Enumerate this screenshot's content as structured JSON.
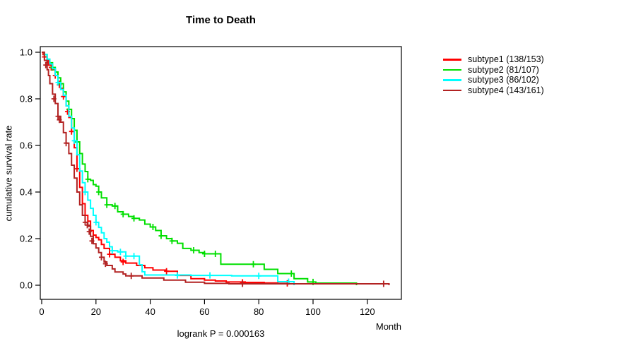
{
  "figure": {
    "title": "Time to Death",
    "x_axis_label": "Month",
    "y_axis_label": "cumulative survival rate",
    "annotation": "logrank P = 0.000163"
  },
  "chart_data": {
    "type": "line",
    "line_style": "kaplan-meier-step",
    "title": "Time to Death",
    "xlabel": "Month",
    "ylabel": "cumulative survival rate",
    "xlim": [
      0,
      134
    ],
    "ylim": [
      0,
      1.0
    ],
    "x_ticks": [
      0,
      20,
      40,
      60,
      80,
      100,
      120
    ],
    "y_tick_labels": [
      "0.0",
      "0.2",
      "0.4",
      "0.6",
      "0.8",
      "1.0"
    ],
    "grid": false,
    "legend_position": "right-outside",
    "annotation": "logrank P = 0.000163",
    "series": [
      {
        "name": "subtype1",
        "label": "subtype1 (138/153)",
        "events": "138/153",
        "color": "#FF0000",
        "points": [
          [
            0,
            1.0
          ],
          [
            0.5,
            0.99
          ],
          [
            1,
            0.98
          ],
          [
            2,
            0.96
          ],
          [
            3,
            0.945
          ],
          [
            4,
            0.925
          ],
          [
            5,
            0.9
          ],
          [
            6,
            0.875
          ],
          [
            7,
            0.845
          ],
          [
            8,
            0.81
          ],
          [
            9,
            0.77
          ],
          [
            10,
            0.72
          ],
          [
            11,
            0.66
          ],
          [
            12,
            0.59
          ],
          [
            13,
            0.5
          ],
          [
            14,
            0.42
          ],
          [
            15,
            0.35
          ],
          [
            16,
            0.3
          ],
          [
            17,
            0.275
          ],
          [
            18,
            0.235
          ],
          [
            19,
            0.215
          ],
          [
            20,
            0.205
          ],
          [
            21,
            0.195
          ],
          [
            22,
            0.175
          ],
          [
            23,
            0.158
          ],
          [
            25,
            0.133
          ],
          [
            27,
            0.12
          ],
          [
            29,
            0.105
          ],
          [
            31,
            0.095
          ],
          [
            35,
            0.085
          ],
          [
            38,
            0.075
          ],
          [
            41,
            0.065
          ],
          [
            46,
            0.06
          ],
          [
            50,
            0.042
          ],
          [
            55,
            0.028
          ],
          [
            60,
            0.022
          ],
          [
            64,
            0.018
          ],
          [
            68,
            0.014
          ],
          [
            75,
            0.012
          ],
          [
            82,
            0.01
          ],
          [
            87,
            0.008
          ],
          [
            91,
            0.008
          ]
        ],
        "censor_marks": [
          [
            1,
            0.98
          ],
          [
            2.5,
            0.955
          ],
          [
            3.5,
            0.935
          ],
          [
            5,
            0.9
          ],
          [
            6.5,
            0.86
          ],
          [
            8,
            0.81
          ],
          [
            9.5,
            0.745
          ],
          [
            11,
            0.66
          ],
          [
            13,
            0.5
          ],
          [
            25,
            0.133
          ],
          [
            30,
            0.1
          ],
          [
            46,
            0.06
          ],
          [
            74,
            0.012
          ],
          [
            90.5,
            0.008
          ]
        ]
      },
      {
        "name": "subtype2",
        "label": "subtype2 (81/107)",
        "events": "81/107",
        "color": "#00DF00",
        "points": [
          [
            0,
            1.0
          ],
          [
            1,
            0.99
          ],
          [
            2,
            0.97
          ],
          [
            3,
            0.955
          ],
          [
            4,
            0.935
          ],
          [
            5,
            0.915
          ],
          [
            6,
            0.89
          ],
          [
            7,
            0.865
          ],
          [
            8,
            0.83
          ],
          [
            9,
            0.79
          ],
          [
            10,
            0.755
          ],
          [
            11,
            0.715
          ],
          [
            12,
            0.665
          ],
          [
            13,
            0.615
          ],
          [
            14,
            0.565
          ],
          [
            15,
            0.52
          ],
          [
            16,
            0.488
          ],
          [
            17,
            0.455
          ],
          [
            18,
            0.45
          ],
          [
            19,
            0.432
          ],
          [
            20,
            0.425
          ],
          [
            21,
            0.4
          ],
          [
            22,
            0.375
          ],
          [
            24,
            0.345
          ],
          [
            26,
            0.34
          ],
          [
            28,
            0.315
          ],
          [
            30,
            0.305
          ],
          [
            32,
            0.295
          ],
          [
            34,
            0.287
          ],
          [
            36,
            0.28
          ],
          [
            38,
            0.262
          ],
          [
            40,
            0.25
          ],
          [
            42,
            0.235
          ],
          [
            44,
            0.212
          ],
          [
            46,
            0.2
          ],
          [
            48,
            0.19
          ],
          [
            50,
            0.18
          ],
          [
            52,
            0.158
          ],
          [
            55,
            0.15
          ],
          [
            58,
            0.14
          ],
          [
            60,
            0.135
          ],
          [
            66,
            0.09
          ],
          [
            82,
            0.068
          ],
          [
            87,
            0.05
          ],
          [
            93,
            0.028
          ],
          [
            98,
            0.014
          ],
          [
            101,
            0.009
          ],
          [
            116,
            0.009
          ],
          [
            116,
            0.0
          ]
        ],
        "censor_marks": [
          [
            4,
            0.935
          ],
          [
            7,
            0.865
          ],
          [
            10,
            0.755
          ],
          [
            13,
            0.615
          ],
          [
            17,
            0.455
          ],
          [
            21,
            0.4
          ],
          [
            24,
            0.345
          ],
          [
            27,
            0.34
          ],
          [
            30,
            0.305
          ],
          [
            34,
            0.287
          ],
          [
            41,
            0.25
          ],
          [
            44,
            0.212
          ],
          [
            48,
            0.19
          ],
          [
            56,
            0.15
          ],
          [
            60,
            0.135
          ],
          [
            64,
            0.135
          ],
          [
            78,
            0.09
          ],
          [
            92,
            0.05
          ],
          [
            100,
            0.014
          ]
        ]
      },
      {
        "name": "subtype3",
        "label": "subtype3 (86/102)",
        "events": "86/102",
        "color": "#00FFFF",
        "points": [
          [
            0,
            1.0
          ],
          [
            1,
            0.99
          ],
          [
            2,
            0.97
          ],
          [
            3,
            0.95
          ],
          [
            4,
            0.93
          ],
          [
            5,
            0.9
          ],
          [
            6,
            0.87
          ],
          [
            7,
            0.84
          ],
          [
            8,
            0.815
          ],
          [
            9,
            0.77
          ],
          [
            10,
            0.725
          ],
          [
            11,
            0.675
          ],
          [
            12,
            0.62
          ],
          [
            13,
            0.56
          ],
          [
            14,
            0.49
          ],
          [
            15,
            0.44
          ],
          [
            16,
            0.4
          ],
          [
            17,
            0.365
          ],
          [
            18,
            0.33
          ],
          [
            19,
            0.3
          ],
          [
            20,
            0.27
          ],
          [
            21,
            0.248
          ],
          [
            22,
            0.225
          ],
          [
            23,
            0.2
          ],
          [
            24,
            0.185
          ],
          [
            25,
            0.165
          ],
          [
            26,
            0.148
          ],
          [
            28,
            0.143
          ],
          [
            31,
            0.125
          ],
          [
            36,
            0.088
          ],
          [
            37,
            0.058
          ],
          [
            38,
            0.044
          ],
          [
            55,
            0.042
          ],
          [
            70,
            0.04
          ],
          [
            87,
            0.015
          ],
          [
            93,
            0.015
          ],
          [
            93,
            0.0
          ]
        ],
        "censor_marks": [
          [
            6,
            0.87
          ],
          [
            12,
            0.62
          ],
          [
            16,
            0.4
          ],
          [
            20,
            0.27
          ],
          [
            26,
            0.148
          ],
          [
            29,
            0.143
          ],
          [
            31,
            0.125
          ],
          [
            34,
            0.125
          ],
          [
            50,
            0.042
          ],
          [
            62,
            0.042
          ],
          [
            80,
            0.04
          ],
          [
            91,
            0.015
          ]
        ]
      },
      {
        "name": "subtype4",
        "label": "subtype4 (143/161)",
        "events": "143/161",
        "color": "#B22222",
        "points": [
          [
            0,
            1.0
          ],
          [
            1,
            0.965
          ],
          [
            2,
            0.925
          ],
          [
            2.5,
            0.9
          ],
          [
            3,
            0.865
          ],
          [
            4,
            0.82
          ],
          [
            5,
            0.78
          ],
          [
            6,
            0.725
          ],
          [
            7,
            0.7
          ],
          [
            8,
            0.655
          ],
          [
            9,
            0.61
          ],
          [
            10,
            0.565
          ],
          [
            11,
            0.515
          ],
          [
            12,
            0.46
          ],
          [
            13,
            0.4
          ],
          [
            14,
            0.345
          ],
          [
            15,
            0.3
          ],
          [
            16,
            0.27
          ],
          [
            17,
            0.253
          ],
          [
            18,
            0.21
          ],
          [
            19,
            0.178
          ],
          [
            20,
            0.16
          ],
          [
            21,
            0.14
          ],
          [
            22,
            0.12
          ],
          [
            23,
            0.1
          ],
          [
            24,
            0.085
          ],
          [
            26,
            0.07
          ],
          [
            27,
            0.057
          ],
          [
            30,
            0.048
          ],
          [
            31,
            0.04
          ],
          [
            37,
            0.031
          ],
          [
            45,
            0.022
          ],
          [
            53,
            0.013
          ],
          [
            60,
            0.008
          ],
          [
            69,
            0.006
          ],
          [
            128,
            0.006
          ],
          [
            128,
            0.0
          ]
        ],
        "censor_marks": [
          [
            1.5,
            0.945
          ],
          [
            4.5,
            0.8
          ],
          [
            6,
            0.725
          ],
          [
            6.5,
            0.71
          ],
          [
            9,
            0.61
          ],
          [
            16,
            0.27
          ],
          [
            16.8,
            0.258
          ],
          [
            17.5,
            0.23
          ],
          [
            18.5,
            0.19
          ],
          [
            22,
            0.12
          ],
          [
            23.5,
            0.092
          ],
          [
            33,
            0.04
          ],
          [
            74,
            0.006
          ],
          [
            126,
            0.006
          ]
        ]
      }
    ]
  }
}
